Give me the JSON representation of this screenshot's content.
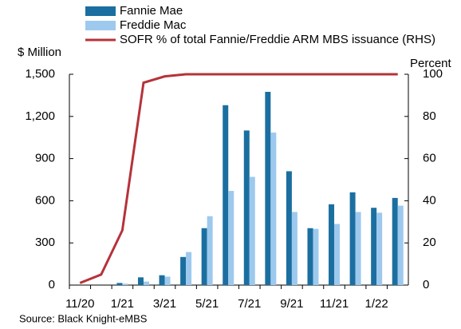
{
  "chart_data": {
    "type": "bar",
    "categories": [
      "11/20",
      null,
      "1/21",
      null,
      "3/21",
      null,
      "5/21",
      null,
      "7/21",
      null,
      "9/21",
      null,
      "11/21",
      null,
      "1/22",
      null
    ],
    "series": [
      {
        "name": "Fannie Mae",
        "color": "#1b6fa0",
        "values": [
          null,
          null,
          15,
          55,
          70,
          200,
          405,
          1280,
          1100,
          1375,
          810,
          405,
          575,
          660,
          550,
          620
        ]
      },
      {
        "name": "Freddie Mac",
        "color": "#9dc9ee",
        "values": [
          null,
          null,
          10,
          25,
          60,
          235,
          490,
          670,
          770,
          1085,
          520,
          400,
          435,
          520,
          515,
          565
        ]
      },
      {
        "name": "SOFR % of total Fannie/Freddie ARM MBS issuance (RHS)",
        "color": "#b5333a",
        "type": "line",
        "axis": "y2",
        "values": [
          1,
          5,
          26,
          96,
          99,
          100,
          100,
          100,
          100,
          100,
          100,
          100,
          100,
          100,
          100,
          100
        ]
      }
    ],
    "ylabel": "$ Million",
    "y2label": "Percent",
    "ylim": [
      0,
      1500
    ],
    "yticks": [
      0,
      300,
      600,
      900,
      {
        "value": 1200,
        "label": "1,200"
      },
      {
        "value": 1500,
        "label": "1,500"
      }
    ],
    "y2lim": [
      0,
      100
    ],
    "y2ticks": [
      0,
      20,
      40,
      60,
      80,
      100
    ],
    "source": "Source: Black Knight-eMBS"
  }
}
